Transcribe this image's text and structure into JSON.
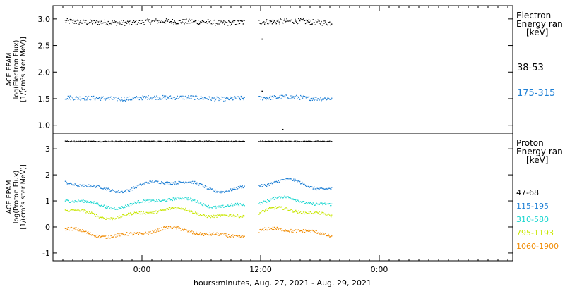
{
  "chart_data": [
    {
      "type": "scatter",
      "panel": "electron",
      "ylabel": [
        "ACE EPAM",
        "log(Electron Flux)",
        "[1/(cm²s ster MeV)]"
      ],
      "ylim": [
        0.85,
        3.25
      ],
      "yticks": [
        "3.0",
        "2.5",
        "2.0",
        "1.5",
        "1.0"
      ],
      "legend_title": [
        "Electron",
        "Energy ran",
        "[keV]"
      ],
      "series": [
        {
          "name": "38-53",
          "color": "#000000",
          "level": 2.95,
          "jitter": 0.05,
          "wave": 0.02
        },
        {
          "name": "175-315",
          "color": "#1e7fd4",
          "level": 1.52,
          "jitter": 0.04,
          "wave": 0.02
        }
      ],
      "outliers": [
        {
          "x_hours": 12.1,
          "y": 2.63
        },
        {
          "x_hours": 12.1,
          "y": 1.65
        },
        {
          "x_hours": 14.2,
          "y": 0.93
        }
      ]
    },
    {
      "type": "scatter",
      "panel": "proton",
      "ylabel": [
        "ACE EPAM",
        "log(Proton Flux)",
        "[1/(cm²s ster MeV)]"
      ],
      "ylim": [
        -1.3,
        3.6
      ],
      "yticks": [
        "3",
        "2",
        "1",
        "0",
        "-1"
      ],
      "legend_title": [
        "Proton",
        "Energy ran",
        "[keV]"
      ],
      "series": [
        {
          "name": "47-68",
          "color": "#000000",
          "level": 3.3,
          "jitter": 0.02,
          "wave": 0.0
        },
        {
          "name": "115-195",
          "color": "#1e7fd4",
          "level": 1.6,
          "jitter": 0.05,
          "wave": 0.25
        },
        {
          "name": "310-580",
          "color": "#19d6cf",
          "level": 0.95,
          "jitter": 0.05,
          "wave": 0.22
        },
        {
          "name": "795-1193",
          "color": "#c8e600",
          "level": 0.55,
          "jitter": 0.05,
          "wave": 0.22
        },
        {
          "name": "1060-1900",
          "color": "#f08a00",
          "level": -0.2,
          "jitter": 0.06,
          "wave": 0.2
        }
      ]
    }
  ],
  "x_axis": {
    "xlabel": "hours:minutes, Aug. 27, 2021 - Aug. 29, 2021",
    "xlim_hours": [
      -9,
      37.5
    ],
    "ticks": [
      {
        "hours": 0,
        "label": "0:00"
      },
      {
        "hours": 12,
        "label": "12:00"
      },
      {
        "hours": 24,
        "label": "0:00"
      }
    ],
    "segments_hours": [
      [
        -7.8,
        10.4
      ],
      [
        11.8,
        19.2
      ]
    ]
  }
}
